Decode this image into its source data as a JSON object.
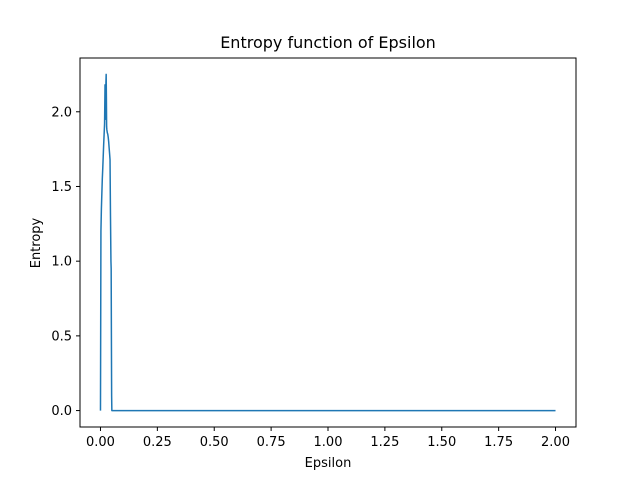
{
  "chart_data": {
    "type": "line",
    "title": "Entropy function of Epsilon",
    "xlabel": "Epsilon",
    "ylabel": "Entropy",
    "xlim": [
      -0.09,
      2.09
    ],
    "ylim": [
      -0.11,
      2.36
    ],
    "xticks": [
      0.0,
      0.25,
      0.5,
      0.75,
      1.0,
      1.25,
      1.5,
      1.75,
      2.0
    ],
    "xtick_labels": [
      "0.00",
      "0.25",
      "0.50",
      "0.75",
      "1.00",
      "1.25",
      "1.50",
      "1.75",
      "2.00"
    ],
    "yticks": [
      0.0,
      0.5,
      1.0,
      1.5,
      2.0
    ],
    "ytick_labels": [
      "0.0",
      "0.5",
      "1.0",
      "1.5",
      "2.0"
    ],
    "grid": false,
    "series": [
      {
        "color": "#1f77b4",
        "x": [
          0.0,
          0.002,
          0.004,
          0.006,
          0.008,
          0.01,
          0.012,
          0.014,
          0.016,
          0.018,
          0.02,
          0.022,
          0.024,
          0.025,
          0.026,
          0.027,
          0.028,
          0.029,
          0.03,
          0.032,
          0.034,
          0.036,
          0.038,
          0.04,
          0.042,
          0.044,
          0.046,
          0.047,
          0.048,
          0.049,
          0.05,
          0.06,
          0.1,
          0.5,
          1.0,
          1.5,
          2.0
        ],
        "y": [
          0.0,
          1.2,
          1.35,
          1.45,
          1.55,
          1.62,
          1.7,
          1.78,
          1.85,
          1.92,
          2.18,
          1.95,
          2.2,
          2.25,
          2.1,
          1.9,
          1.88,
          1.87,
          1.86,
          1.85,
          1.83,
          1.8,
          1.76,
          1.72,
          1.68,
          1.3,
          1.0,
          0.95,
          0.5,
          0.1,
          0.0,
          0.0,
          0.0,
          0.0,
          0.0,
          0.0,
          0.0
        ]
      }
    ]
  }
}
